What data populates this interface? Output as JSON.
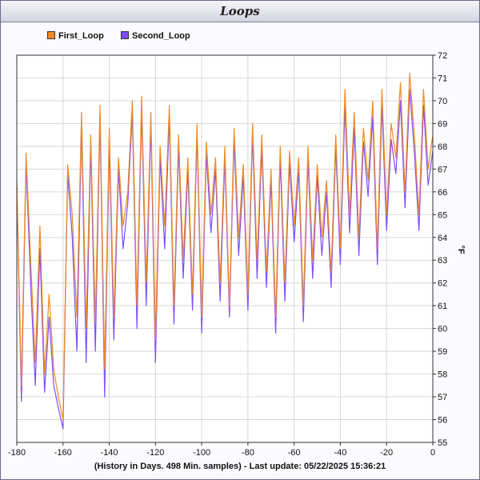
{
  "colors": {
    "first_loop": "#f08a24",
    "second_loop": "#7b4dff",
    "grid": "#d8d8d8",
    "plot_bg": "#ffffff"
  },
  "chart_data": {
    "type": "line",
    "title": "Loops",
    "xlabel": "(History in Days. 498 Min. samples) - Last update: 05/22/2025 15:36:21",
    "ylabel": "°F",
    "xlim": [
      -180,
      0
    ],
    "ylim": [
      55,
      72
    ],
    "x_ticks": [
      -180,
      -160,
      -140,
      -120,
      -100,
      -80,
      -60,
      -40,
      -20,
      0
    ],
    "y_ticks": [
      55,
      56,
      57,
      58,
      59,
      60,
      61,
      62,
      63,
      64,
      65,
      66,
      67,
      68,
      69,
      70,
      71,
      72
    ],
    "grid": true,
    "legend_position": "top-left",
    "x": [
      -180,
      -178,
      -176,
      -174,
      -172,
      -170,
      -168,
      -166,
      -164,
      -162,
      -160,
      -158,
      -156,
      -154,
      -152,
      -150,
      -148,
      -146,
      -144,
      -142,
      -140,
      -138,
      -136,
      -134,
      -132,
      -130,
      -128,
      -126,
      -124,
      -122,
      -120,
      -118,
      -116,
      -114,
      -112,
      -110,
      -108,
      -106,
      -104,
      -102,
      -100,
      -98,
      -96,
      -94,
      -92,
      -90,
      -88,
      -86,
      -84,
      -82,
      -80,
      -78,
      -76,
      -74,
      -72,
      -70,
      -68,
      -66,
      -64,
      -62,
      -60,
      -58,
      -56,
      -54,
      -52,
      -50,
      -48,
      -46,
      -44,
      -42,
      -40,
      -38,
      -36,
      -34,
      -32,
      -30,
      -28,
      -26,
      -24,
      -22,
      -20,
      -18,
      -16,
      -14,
      -12,
      -10,
      -8,
      -6,
      -4,
      -2,
      0
    ],
    "series": [
      {
        "name": "First_Loop",
        "values": [
          66.5,
          57.5,
          67.7,
          63.0,
          58.5,
          64.5,
          58.0,
          61.5,
          58.2,
          57.0,
          56.0,
          67.2,
          65.0,
          60.5,
          69.5,
          60.0,
          68.5,
          60.3,
          69.8,
          58.2,
          68.8,
          60.5,
          67.5,
          64.5,
          66.0,
          70.0,
          61.0,
          70.2,
          62.0,
          69.5,
          59.5,
          68.0,
          64.5,
          69.8,
          61.0,
          68.5,
          63.0,
          67.5,
          61.5,
          69.0,
          60.5,
          68.2,
          65.0,
          67.5,
          62.0,
          68.0,
          61.0,
          68.8,
          64.0,
          67.2,
          61.5,
          69.0,
          63.0,
          68.5,
          62.5,
          67.0,
          60.5,
          68.0,
          62.0,
          67.8,
          64.5,
          67.5,
          61.0,
          68.0,
          63.0,
          67.2,
          64.0,
          66.5,
          62.5,
          68.5,
          63.5,
          70.5,
          65.0,
          69.5,
          64.0,
          68.8,
          66.5,
          70.0,
          63.5,
          70.5,
          65.0,
          69.0,
          67.5,
          70.8,
          66.0,
          71.2,
          68.5,
          65.0,
          70.5,
          67.0,
          68.5
        ],
        "color": "#f08a24"
      },
      {
        "name": "Second_Loop",
        "values": [
          66.2,
          56.8,
          67.3,
          62.0,
          57.5,
          63.5,
          57.2,
          60.5,
          57.5,
          56.5,
          55.6,
          66.8,
          64.0,
          59.0,
          69.0,
          58.5,
          68.0,
          59.0,
          69.3,
          57.0,
          68.3,
          59.5,
          67.0,
          63.5,
          65.5,
          69.5,
          60.0,
          69.7,
          61.0,
          69.0,
          58.5,
          67.5,
          63.5,
          69.3,
          60.2,
          68.0,
          62.2,
          67.0,
          60.8,
          68.5,
          59.8,
          67.7,
          64.2,
          67.0,
          61.2,
          67.5,
          60.5,
          68.3,
          63.2,
          66.7,
          60.8,
          68.5,
          62.2,
          68.0,
          61.8,
          66.5,
          59.8,
          67.5,
          61.2,
          67.3,
          63.8,
          67.0,
          60.3,
          67.5,
          62.2,
          66.7,
          63.2,
          66.0,
          61.8,
          68.0,
          62.8,
          69.8,
          64.2,
          68.8,
          63.2,
          68.2,
          65.8,
          69.3,
          62.8,
          69.8,
          64.3,
          68.3,
          66.8,
          70.0,
          65.3,
          70.5,
          67.8,
          64.3,
          69.8,
          66.3,
          67.8
        ],
        "color": "#7b4dff"
      }
    ]
  }
}
